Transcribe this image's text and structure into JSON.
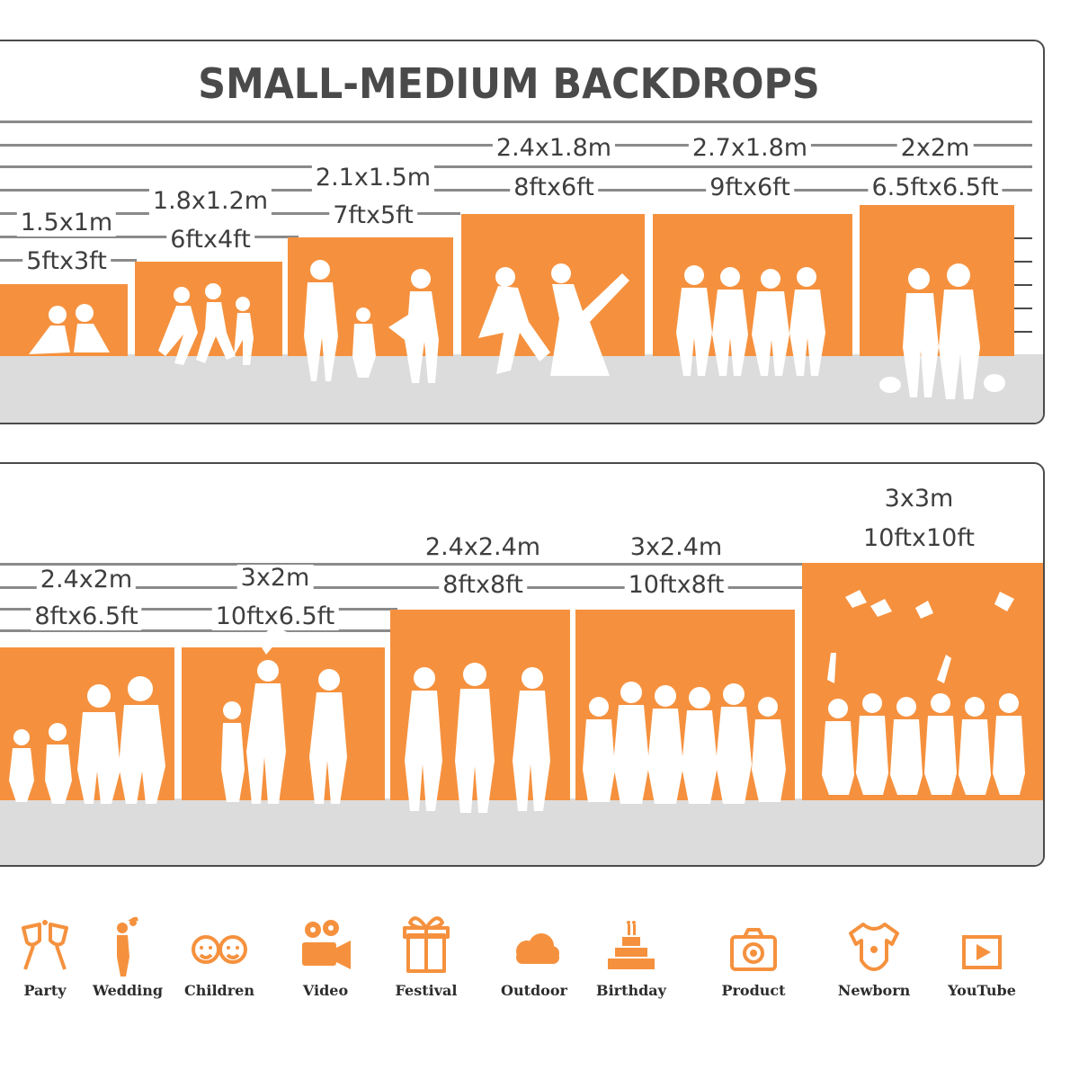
{
  "top_panel": {
    "title": "SMALL-MEDIUM BACKDROPS",
    "sizes": [
      {
        "metric": "1.5x1m",
        "imperial": "5ftx3ft",
        "scene": "children reading"
      },
      {
        "metric": "1.8x1.2m",
        "imperial": "6ftx4ft",
        "scene": "children running"
      },
      {
        "metric": "2.1x1.5m",
        "imperial": "7ftx5ft",
        "scene": "family walking"
      },
      {
        "metric": "2.4x1.8m",
        "imperial": "8ftx6ft",
        "scene": "wedding couple"
      },
      {
        "metric": "2.7x1.8m",
        "imperial": "9ftx6ft",
        "scene": "group of women"
      },
      {
        "metric": "2x2m",
        "imperial": "6.5ftx6.5ft",
        "scene": "couple with pets"
      }
    ]
  },
  "bottom_panel": {
    "sizes": [
      {
        "metric": "2.4x2m",
        "imperial": "8ftx6.5ft",
        "scene": "family"
      },
      {
        "metric": "3x2m",
        "imperial": "10ftx6.5ft",
        "scene": "parent lifting child"
      },
      {
        "metric": "2.4x2.4m",
        "imperial": "8ftx8ft",
        "scene": "adults standing"
      },
      {
        "metric": "3x2.4m",
        "imperial": "10ftx8ft",
        "scene": "large group"
      },
      {
        "metric": "3x3m",
        "imperial": "10ftx10ft",
        "scene": "graduates throwing caps"
      }
    ]
  },
  "use_cases": [
    {
      "label": "Party",
      "icon": "party-glasses-icon"
    },
    {
      "label": "Wedding",
      "icon": "wedding-couple-icon"
    },
    {
      "label": "Children",
      "icon": "children-faces-icon"
    },
    {
      "label": "Video",
      "icon": "video-camera-icon"
    },
    {
      "label": "Festival",
      "icon": "gift-box-icon"
    },
    {
      "label": "Outdoor",
      "icon": "cloud-icon"
    },
    {
      "label": "Birthday",
      "icon": "birthday-cake-icon"
    },
    {
      "label": "Product",
      "icon": "camera-icon"
    },
    {
      "label": "Newborn",
      "icon": "baby-onesie-icon"
    },
    {
      "label": "YouTube",
      "icon": "play-button-icon"
    }
  ],
  "colors": {
    "accent": "#f5913e",
    "floor": "#dcdcdc",
    "text": "#3e3e3e",
    "border": "#4b4b4b"
  }
}
